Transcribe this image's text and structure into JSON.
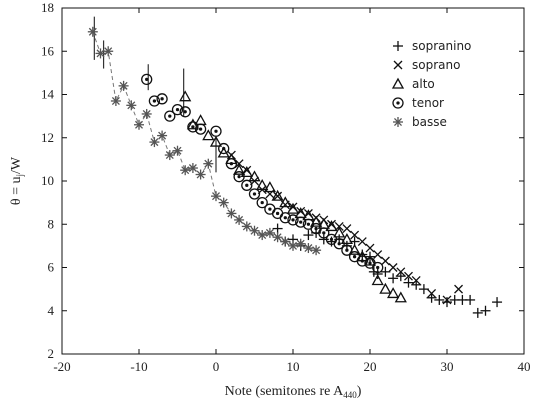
{
  "chart_data": {
    "type": "scatter",
    "xlabel": "Note  (semitones re A440)",
    "ylabel": "θ = uj/W",
    "xlim": [
      -20,
      40
    ],
    "ylim": [
      2,
      18
    ],
    "xticks": [
      "-20",
      "-10",
      "0",
      "10",
      "20",
      "30",
      "40"
    ],
    "yticks": [
      "2",
      "4",
      "6",
      "8",
      "10",
      "12",
      "14",
      "16",
      "18"
    ],
    "legend_position": "top-right",
    "grid": false,
    "series": [
      {
        "name": "sopranino",
        "marker": "plus",
        "color": "#111111",
        "points": [
          [
            8,
            7.8
          ],
          [
            9,
            7.2
          ],
          [
            10,
            7.3
          ],
          [
            11,
            7.0
          ],
          [
            12,
            7.5
          ],
          [
            13,
            7.6
          ],
          [
            14,
            7.3
          ],
          [
            15,
            7.2
          ],
          [
            16,
            7.3
          ],
          [
            17,
            7.0
          ],
          [
            18,
            7.2
          ],
          [
            19,
            6.6
          ],
          [
            20,
            6.5
          ],
          [
            20.5,
            5.8
          ],
          [
            21,
            5.7
          ],
          [
            22,
            5.8
          ],
          [
            23,
            5.5
          ],
          [
            24,
            5.6
          ],
          [
            25,
            5.3
          ],
          [
            26,
            5.2
          ],
          [
            27,
            5.0
          ],
          [
            28,
            4.6
          ],
          [
            29,
            4.5
          ],
          [
            30,
            4.4
          ],
          [
            31,
            4.5
          ],
          [
            32,
            4.5
          ],
          [
            33,
            4.5
          ],
          [
            34,
            3.9
          ],
          [
            35,
            4.0
          ],
          [
            36.5,
            4.4
          ]
        ]
      },
      {
        "name": "soprano",
        "marker": "cross",
        "color": "#111111",
        "points": [
          [
            2,
            11.2
          ],
          [
            3,
            10.8
          ],
          [
            4,
            10.5
          ],
          [
            5,
            10.0
          ],
          [
            6,
            9.6
          ],
          [
            7,
            9.4
          ],
          [
            8,
            9.3
          ],
          [
            9,
            8.9
          ],
          [
            10,
            8.8
          ],
          [
            11,
            8.6
          ],
          [
            12,
            8.5
          ],
          [
            13,
            8.3
          ],
          [
            14,
            8.2
          ],
          [
            15,
            8.0
          ],
          [
            16,
            7.9
          ],
          [
            17,
            7.8
          ],
          [
            18,
            7.5
          ],
          [
            19,
            7.2
          ],
          [
            20,
            6.9
          ],
          [
            21,
            6.6
          ],
          [
            22,
            6.3
          ],
          [
            23,
            6.0
          ],
          [
            24,
            5.8
          ],
          [
            25,
            5.6
          ],
          [
            26,
            5.4
          ],
          [
            28,
            4.8
          ],
          [
            30,
            4.5
          ],
          [
            31.5,
            5.0
          ]
        ]
      },
      {
        "name": "alto",
        "marker": "triangle",
        "color": "#111111",
        "points": [
          [
            -4,
            13.9
          ],
          [
            -3,
            12.6
          ],
          [
            -2,
            12.8
          ],
          [
            -1,
            12.1
          ],
          [
            0,
            11.8
          ],
          [
            1,
            11.3
          ],
          [
            2,
            11.0
          ],
          [
            3,
            10.5
          ],
          [
            4,
            10.4
          ],
          [
            5,
            10.2
          ],
          [
            6,
            9.8
          ],
          [
            7,
            9.7
          ],
          [
            8,
            9.3
          ],
          [
            9,
            9.0
          ],
          [
            10,
            8.7
          ],
          [
            11,
            8.5
          ],
          [
            12,
            8.4
          ],
          [
            13,
            8.1
          ],
          [
            14,
            8.0
          ],
          [
            15,
            7.9
          ],
          [
            16,
            7.6
          ],
          [
            17,
            7.3
          ],
          [
            18,
            6.8
          ],
          [
            19,
            6.5
          ],
          [
            20,
            6.3
          ],
          [
            21,
            5.4
          ],
          [
            22,
            5.0
          ],
          [
            23,
            4.8
          ],
          [
            24,
            4.6
          ]
        ]
      },
      {
        "name": "tenor",
        "marker": "circle",
        "color": "#111111",
        "points": [
          [
            -9,
            14.7
          ],
          [
            -8,
            13.7
          ],
          [
            -7,
            13.8
          ],
          [
            -6,
            13.0
          ],
          [
            -5,
            13.3
          ],
          [
            -4,
            13.2
          ],
          [
            -3,
            12.5
          ],
          [
            -2,
            12.4
          ],
          [
            0,
            12.3
          ],
          [
            1,
            11.5
          ],
          [
            2,
            10.8
          ],
          [
            3,
            10.2
          ],
          [
            4,
            9.8
          ],
          [
            5,
            9.4
          ],
          [
            6,
            9.0
          ],
          [
            7,
            8.7
          ],
          [
            8,
            8.5
          ],
          [
            9,
            8.3
          ],
          [
            10,
            8.2
          ],
          [
            11,
            8.1
          ],
          [
            12,
            8.0
          ],
          [
            13,
            7.8
          ],
          [
            14,
            7.6
          ],
          [
            15,
            7.3
          ],
          [
            16,
            7.1
          ],
          [
            17,
            6.8
          ],
          [
            18,
            6.5
          ],
          [
            19,
            6.3
          ],
          [
            20,
            6.2
          ],
          [
            21,
            6.0
          ]
        ]
      },
      {
        "name": "basse",
        "marker": "star",
        "color": "#555555",
        "points": [
          [
            -16,
            16.9
          ],
          [
            -15,
            15.9
          ],
          [
            -14,
            16.0
          ],
          [
            -13,
            13.7
          ],
          [
            -12,
            14.4
          ],
          [
            -11,
            13.5
          ],
          [
            -10,
            12.6
          ],
          [
            -9,
            13.1
          ],
          [
            -8,
            11.8
          ],
          [
            -7,
            12.1
          ],
          [
            -6,
            11.2
          ],
          [
            -5,
            11.4
          ],
          [
            -4,
            10.5
          ],
          [
            -3,
            10.6
          ],
          [
            -2,
            10.3
          ],
          [
            -1,
            10.8
          ],
          [
            0,
            9.3
          ],
          [
            1,
            9.0
          ],
          [
            2,
            8.5
          ],
          [
            3,
            8.2
          ],
          [
            4,
            7.9
          ],
          [
            5,
            7.7
          ],
          [
            6,
            7.5
          ],
          [
            7,
            7.6
          ],
          [
            8,
            7.4
          ],
          [
            9,
            7.2
          ],
          [
            10,
            7.0
          ],
          [
            11,
            7.1
          ],
          [
            12,
            6.9
          ],
          [
            13,
            6.8
          ]
        ]
      }
    ],
    "error_bars": [
      {
        "x": -15.8,
        "y": 16.9,
        "low": 15.6,
        "high": 17.6
      },
      {
        "x": -14.6,
        "y": 16.0,
        "low": 15.2,
        "high": 16.5
      },
      {
        "x": -8.8,
        "y": 14.7,
        "low": 14.2,
        "high": 15.4
      },
      {
        "x": -4.2,
        "y": 13.9,
        "low": 13.0,
        "high": 15.2
      },
      {
        "x": 0.0,
        "y": 11.2,
        "low": 10.4,
        "high": 12.0
      }
    ]
  }
}
